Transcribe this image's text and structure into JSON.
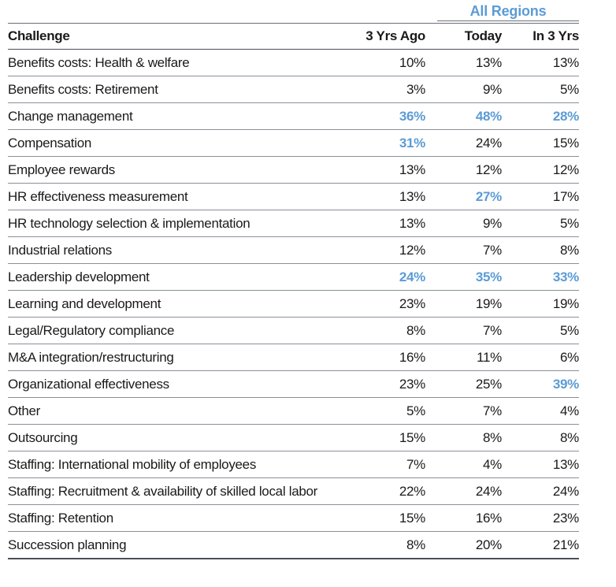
{
  "chart_data": {
    "type": "table",
    "group_header": "All Regions",
    "columns": [
      "Challenge",
      "3 Yrs Ago",
      "Today",
      "In 3 Yrs"
    ],
    "highlight_color": "#5b9bd5",
    "rows": [
      {
        "challenge": "Benefits costs: Health & welfare",
        "values": [
          "10%",
          "13%",
          "13%"
        ],
        "highlight": [
          false,
          false,
          false
        ]
      },
      {
        "challenge": "Benefits costs: Retirement",
        "values": [
          "3%",
          "9%",
          "5%"
        ],
        "highlight": [
          false,
          false,
          false
        ]
      },
      {
        "challenge": "Change management",
        "values": [
          "36%",
          "48%",
          "28%"
        ],
        "highlight": [
          true,
          true,
          true
        ]
      },
      {
        "challenge": "Compensation",
        "values": [
          "31%",
          "24%",
          "15%"
        ],
        "highlight": [
          true,
          false,
          false
        ]
      },
      {
        "challenge": "Employee rewards",
        "values": [
          "13%",
          "12%",
          "12%"
        ],
        "highlight": [
          false,
          false,
          false
        ]
      },
      {
        "challenge": "HR effectiveness measurement",
        "values": [
          "13%",
          "27%",
          "17%"
        ],
        "highlight": [
          false,
          true,
          false
        ]
      },
      {
        "challenge": "HR technology selection & implementation",
        "values": [
          "13%",
          "9%",
          "5%"
        ],
        "highlight": [
          false,
          false,
          false
        ]
      },
      {
        "challenge": "Industrial relations",
        "values": [
          "12%",
          "7%",
          "8%"
        ],
        "highlight": [
          false,
          false,
          false
        ]
      },
      {
        "challenge": "Leadership development",
        "values": [
          "24%",
          "35%",
          "33%"
        ],
        "highlight": [
          true,
          true,
          true
        ]
      },
      {
        "challenge": "Learning and development",
        "values": [
          "23%",
          "19%",
          "19%"
        ],
        "highlight": [
          false,
          false,
          false
        ]
      },
      {
        "challenge": "Legal/Regulatory compliance",
        "values": [
          "8%",
          "7%",
          "5%"
        ],
        "highlight": [
          false,
          false,
          false
        ]
      },
      {
        "challenge": "M&A integration/restructuring",
        "values": [
          "16%",
          "11%",
          "6%"
        ],
        "highlight": [
          false,
          false,
          false
        ]
      },
      {
        "challenge": "Organizational effectiveness",
        "values": [
          "23%",
          "25%",
          "39%"
        ],
        "highlight": [
          false,
          false,
          true
        ]
      },
      {
        "challenge": "Other",
        "values": [
          "5%",
          "7%",
          "4%"
        ],
        "highlight": [
          false,
          false,
          false
        ]
      },
      {
        "challenge": "Outsourcing",
        "values": [
          "15%",
          "8%",
          "8%"
        ],
        "highlight": [
          false,
          false,
          false
        ]
      },
      {
        "challenge": "Staffing: International mobility of employees",
        "values": [
          "7%",
          "4%",
          "13%"
        ],
        "highlight": [
          false,
          false,
          false
        ]
      },
      {
        "challenge": "Staffing: Recruitment & availability of skilled local labor",
        "values": [
          "22%",
          "24%",
          "24%"
        ],
        "highlight": [
          false,
          false,
          false
        ]
      },
      {
        "challenge": "Staffing: Retention",
        "values": [
          "15%",
          "16%",
          "23%"
        ],
        "highlight": [
          false,
          false,
          false
        ]
      },
      {
        "challenge": "Succession planning",
        "values": [
          "8%",
          "20%",
          "21%"
        ],
        "highlight": [
          false,
          false,
          false
        ]
      }
    ]
  }
}
